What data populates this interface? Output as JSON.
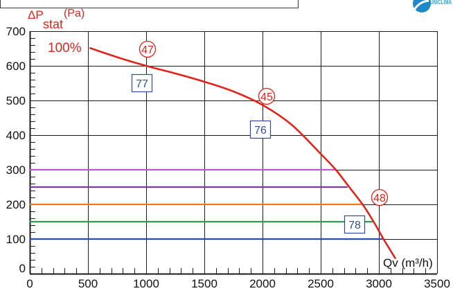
{
  "brand": {
    "logo_text": "UNICLIMA",
    "logo_color": "#1e88c8",
    "text_color": "#35a5dd"
  },
  "chart_data": {
    "type": "line",
    "xlabel": "Qv (m³/h)",
    "ylabel": {
      "main": "ΔP",
      "sub": "stat",
      "unit": "(Pa)"
    },
    "xlim": [
      0,
      3500
    ],
    "ylim": [
      0,
      700
    ],
    "x_ticks": [
      0,
      500,
      1000,
      1500,
      2000,
      2500,
      3000,
      3500
    ],
    "y_ticks": [
      0,
      100,
      200,
      300,
      400,
      500,
      600,
      700
    ],
    "grid": true,
    "legend": "none",
    "series": [
      {
        "name": "100%",
        "color": "#e2231a",
        "x": [
          520,
          750,
          1000,
          1250,
          1500,
          1750,
          2000,
          2250,
          2500,
          2630,
          2745,
          2860,
          2955,
          3040,
          3140
        ],
        "y": [
          651,
          625,
          600,
          578,
          554,
          526,
          487,
          430,
          346,
          300,
          250,
          200,
          150,
          100,
          45
        ]
      },
      {
        "color": "#b35fc6",
        "x": [
          0,
          2630
        ],
        "y": [
          300,
          300
        ]
      },
      {
        "color": "#7b3a9c",
        "x": [
          0,
          2730
        ],
        "y": [
          250,
          250
        ]
      },
      {
        "color": "#ee7a1c",
        "x": [
          0,
          2870
        ],
        "y": [
          200,
          200
        ]
      },
      {
        "color": "#2f9e45",
        "x": [
          0,
          2955
        ],
        "y": [
          150,
          150
        ]
      },
      {
        "color": "#2e4c9f",
        "x": [
          0,
          3040
        ],
        "y": [
          100,
          100
        ]
      }
    ],
    "annotations": [
      {
        "text": "47",
        "shape": "circle",
        "color": "#e2231a"
      },
      {
        "text": "45",
        "shape": "circle",
        "color": "#e2231a"
      },
      {
        "text": "48",
        "shape": "circle",
        "color": "#e2231a"
      },
      {
        "text": "77",
        "shape": "box",
        "color": "#2e4c9f"
      },
      {
        "text": "76",
        "shape": "box",
        "color": "#2e4c9f"
      },
      {
        "text": "78",
        "shape": "box",
        "color": "#2e4c9f"
      }
    ]
  }
}
